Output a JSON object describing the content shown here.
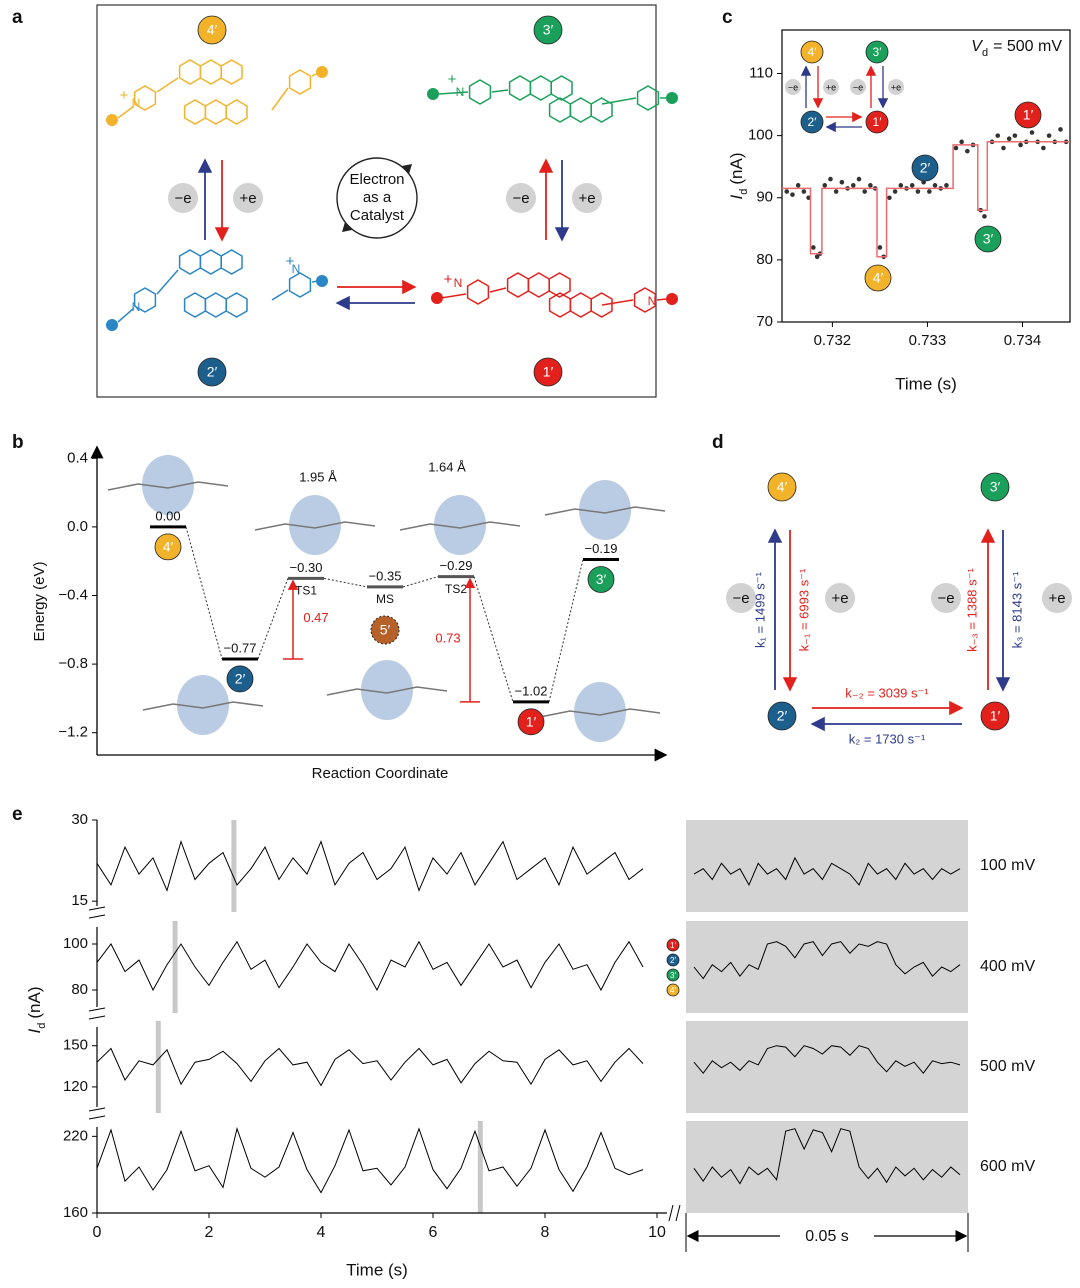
{
  "panel_labels": [
    "a",
    "b",
    "c",
    "d",
    "e"
  ],
  "states": {
    "1": "1′",
    "2": "2′",
    "3": "3′",
    "4": "4′",
    "5": "5′"
  },
  "redox": [
    "−e",
    "+e"
  ],
  "chem": [
    "N",
    "+"
  ],
  "diagram_a": {
    "catalyst_text": [
      "Electron",
      "as a",
      "Catalyst"
    ]
  },
  "diagram_d": {
    "rates": [
      "k₁ = 1499 s⁻¹",
      "k₋₁ = 6993 s⁻¹",
      "k₋₃ = 1388 s⁻¹",
      "k₃ = 8143 s⁻¹",
      "k₋₂ = 3039 s⁻¹",
      "k₂ = 1730 s⁻¹"
    ]
  },
  "chart_data": [
    {
      "type": "energy-diagram",
      "ylabel": "Energy (eV)",
      "xlabel": "Reaction Coordinate",
      "ylim": [
        -1.33,
        0.46
      ],
      "yticks": [
        0.4,
        {
          "value": 0,
          "label": "0.0"
        },
        {
          "value": -0.4,
          "label": "−0.4"
        },
        {
          "value": -0.8,
          "label": "−0.8"
        },
        {
          "value": -1.2,
          "label": "−1.2"
        }
      ],
      "categories": [
        "4′",
        "2′",
        "TS1",
        "MS",
        "TS2",
        "1′",
        "3′"
      ],
      "values": [
        0,
        -0.77,
        -0.3,
        -0.35,
        -0.29,
        -1.02,
        -0.19
      ],
      "value_labels": [
        "0.00",
        "−0.77",
        "−0.30",
        "−0.35",
        "−0.29",
        "−1.02",
        "−0.19"
      ],
      "barriers": {
        "color": "#e3211c",
        "values": [
          0.47,
          0.73
        ]
      },
      "annotations": [
        "1.95 Å",
        "1.64 Å"
      ]
    },
    {
      "type": "scatter",
      "title": {
        "symbol": "V",
        "subscript": "d",
        "text": "= 500 mV"
      },
      "xlabel": "Time (s)",
      "ylabel": {
        "symbol": "I",
        "subscript": "d",
        "unit": "(nA)"
      },
      "xlim": [
        0.73147,
        0.7345
      ],
      "ylim": [
        70,
        117
      ],
      "xticks": [
        0.732,
        0.733,
        0.734
      ],
      "yticks": [
        70,
        80,
        90,
        100,
        110
      ],
      "color": "#333333",
      "x": [
        0.73152,
        0.73158,
        0.73164,
        0.7317,
        0.73175,
        0.7318,
        0.73184,
        0.73187,
        0.73192,
        0.73198,
        0.73204,
        0.7321,
        0.73216,
        0.73222,
        0.73228,
        0.73234,
        0.7324,
        0.73245,
        0.7325,
        0.73254,
        0.7326,
        0.73266,
        0.73272,
        0.73278,
        0.73284,
        0.7329,
        0.73296,
        0.73302,
        0.73308,
        0.73314,
        0.7332,
        0.7333,
        0.73336,
        0.73342,
        0.73348,
        0.73356,
        0.7336,
        0.73368,
        0.73374,
        0.7338,
        0.73386,
        0.73392,
        0.73398,
        0.73404,
        0.7341,
        0.73416,
        0.73422,
        0.73428,
        0.73434,
        0.7344,
        0.73446
      ],
      "values": [
        91,
        90.5,
        92,
        91,
        90,
        82,
        80.5,
        81,
        92,
        93,
        91,
        92.5,
        91.5,
        92,
        93,
        91,
        92,
        91.5,
        82,
        80.5,
        90,
        91,
        92,
        91.5,
        92,
        91,
        92.5,
        91,
        92,
        91.5,
        92,
        98,
        99,
        97.5,
        98.5,
        88,
        87,
        99,
        100,
        98,
        99.5,
        100,
        98.5,
        99,
        100.5,
        99,
        98,
        100,
        99,
        101,
        99
      ],
      "fit": {
        "color": "#ec6b6e",
        "x": [
          0.73147,
          0.73177,
          0.73177,
          0.73189,
          0.73189,
          0.73247,
          0.73247,
          0.73257,
          0.73257,
          0.73327,
          0.73327,
          0.73353,
          0.73353,
          0.73363,
          0.73363,
          0.7345
        ],
        "values": [
          91.5,
          91.5,
          81,
          81,
          91.5,
          91.5,
          80.5,
          80.5,
          91.5,
          91.5,
          98.5,
          98.5,
          88,
          88,
          99,
          99
        ]
      }
    },
    {
      "type": "traces",
      "xlabel": "Time (s)",
      "ylabel": {
        "symbol": "I",
        "subscript": "d",
        "unit": "(nA)"
      },
      "xlim": [
        0,
        10
      ],
      "xticks": [
        0,
        2,
        4,
        6,
        8,
        10
      ],
      "scale_bar": "0.05 s",
      "color": "#000000",
      "x": [
        0,
        0.25,
        0.5,
        0.75,
        1,
        1.25,
        1.5,
        1.75,
        2,
        2.25,
        2.5,
        2.75,
        3,
        3.25,
        3.5,
        3.75,
        4,
        4.25,
        4.5,
        4.75,
        5,
        5.25,
        5.5,
        5.75,
        6,
        6.25,
        6.5,
        6.75,
        7,
        7.25,
        7.5,
        7.75,
        8,
        8.25,
        8.5,
        8.75,
        9,
        9.25,
        9.5,
        9.75
      ],
      "rows": [
        {
          "name": "100 mV",
          "ylim": [
            13,
            30
          ],
          "yticks": [
            15,
            30
          ],
          "values": [
            22,
            18,
            25,
            20,
            23,
            17,
            26,
            19,
            22,
            24,
            18,
            21,
            25,
            19,
            23,
            20,
            26,
            18,
            22,
            24,
            19,
            21,
            25,
            17,
            23,
            20,
            24,
            18,
            22,
            26,
            19,
            21,
            23,
            18,
            25,
            20,
            22,
            24,
            19,
            21
          ],
          "zoom_values": [
            20,
            21,
            19,
            22,
            20,
            21,
            18,
            22,
            20,
            21,
            19,
            23,
            20,
            21,
            19,
            22,
            21,
            20,
            18,
            22,
            20,
            21,
            19,
            22,
            20,
            21,
            19,
            21,
            20,
            21
          ]
        },
        {
          "name": "400 mV",
          "ylim": [
            70,
            110
          ],
          "yticks": [
            80,
            100
          ],
          "values": [
            92,
            100,
            88,
            93,
            80,
            91,
            100,
            90,
            82,
            92,
            101,
            89,
            93,
            81,
            90,
            100,
            92,
            88,
            100,
            91,
            80,
            93,
            90,
            101,
            89,
            92,
            82,
            91,
            100,
            90,
            93,
            81,
            92,
            100,
            89,
            91,
            80,
            92,
            101,
            90
          ],
          "zoom_values": [
            90,
            85,
            91,
            88,
            92,
            86,
            91,
            89,
            100,
            101,
            99,
            94,
            100,
            101,
            95,
            100,
            101,
            96,
            100,
            99,
            101,
            100,
            91,
            87,
            90,
            92,
            86,
            90,
            88,
            91
          ]
        },
        {
          "name": "500 mV",
          "ylim": [
            101,
            168
          ],
          "yticks": [
            120,
            150
          ],
          "values": [
            138,
            148,
            125,
            139,
            136,
            147,
            122,
            138,
            140,
            146,
            137,
            124,
            139,
            148,
            136,
            138,
            121,
            140,
            147,
            137,
            139,
            125,
            138,
            148,
            136,
            140,
            123,
            137,
            146,
            139,
            138,
            122,
            140,
            147,
            136,
            139,
            124,
            138,
            148,
            137
          ],
          "zoom_values": [
            138,
            130,
            139,
            134,
            138,
            132,
            139,
            136,
            148,
            150,
            149,
            142,
            150,
            148,
            144,
            150,
            149,
            143,
            150,
            148,
            138,
            131,
            139,
            135,
            138,
            130,
            139,
            137,
            138,
            136
          ]
        },
        {
          "name": "600 mV",
          "ylim": [
            160,
            232
          ],
          "yticks": [
            160,
            220
          ],
          "values": [
            195,
            225,
            185,
            196,
            178,
            194,
            224,
            193,
            197,
            180,
            226,
            195,
            188,
            196,
            223,
            194,
            176,
            197,
            225,
            193,
            195,
            182,
            196,
            226,
            194,
            179,
            195,
            224,
            193,
            196,
            181,
            195,
            225,
            194,
            177,
            196,
            223,
            195,
            190,
            194
          ],
          "zoom_values": [
            195,
            185,
            196,
            188,
            194,
            183,
            196,
            190,
            195,
            186,
            224,
            226,
            210,
            225,
            223,
            208,
            226,
            224,
            196,
            187,
            195,
            184,
            196,
            189,
            195,
            186,
            194,
            188,
            196,
            190
          ]
        }
      ]
    }
  ]
}
